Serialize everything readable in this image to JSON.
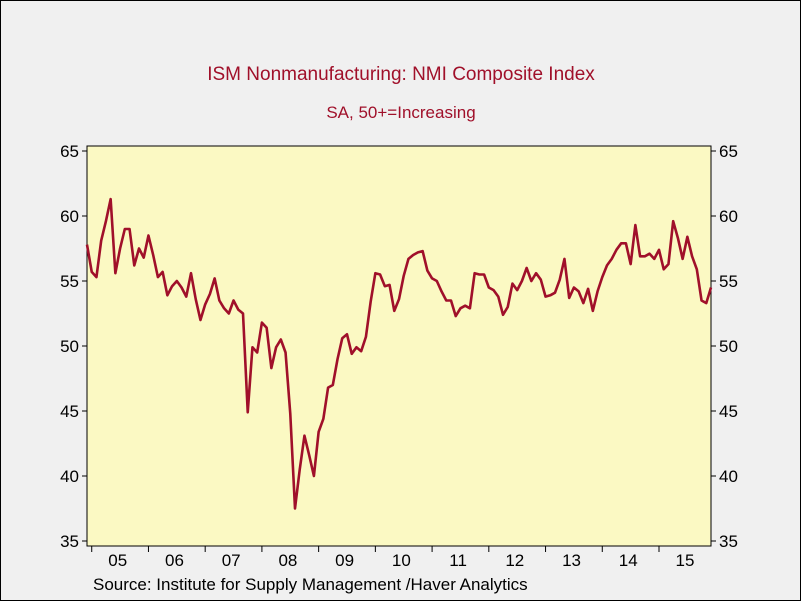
{
  "chart_data": {
    "type": "line",
    "title": "ISM Nonmanufacturing: NMI Composite Index",
    "subtitle": "SA, 50+=Increasing",
    "source": "Source:  Institute for Supply Management /Haver Analytics",
    "x_tick_labels": [
      "05",
      "06",
      "07",
      "08",
      "09",
      "10",
      "11",
      "12",
      "13",
      "14",
      "15"
    ],
    "y_ticks": [
      35,
      40,
      45,
      50,
      55,
      60,
      65
    ],
    "ylim": [
      35,
      65
    ],
    "grid": false,
    "plot_background": "#fbf9c3",
    "page_background": "#f0f0f0",
    "line_color": "#a0102a",
    "series": [
      {
        "start": "2004-12",
        "values": [
          57.8,
          55.7,
          55.3,
          58.1,
          59.6,
          61.3,
          55.6,
          57.5,
          59.0,
          59.0,
          56.2,
          57.5,
          56.8,
          58.5,
          57.0,
          55.3,
          55.7,
          53.9,
          54.6,
          55.0,
          54.5,
          53.8,
          55.6,
          53.6,
          52.0,
          53.2,
          54.0,
          55.2,
          53.5,
          52.9,
          52.5,
          53.5,
          52.8,
          52.5,
          44.9,
          49.9,
          49.5,
          51.8,
          51.4,
          48.3,
          49.9,
          50.5,
          49.5,
          44.8,
          37.5,
          40.5,
          43.1,
          41.6,
          40.0,
          43.4,
          44.4,
          46.8,
          47.0,
          49.0,
          50.6,
          50.9,
          49.4,
          49.9,
          49.6,
          50.7,
          53.4,
          55.6,
          55.5,
          54.6,
          54.7,
          52.7,
          53.6,
          55.4,
          56.7,
          57.0,
          57.2,
          57.3,
          55.8,
          55.2,
          55.0,
          54.2,
          53.5,
          53.5,
          52.3,
          52.9,
          53.1,
          52.9,
          55.6,
          55.5,
          55.5,
          54.5,
          54.3,
          53.8,
          52.4,
          53.0,
          54.8,
          54.3,
          55.0,
          56.0,
          55.0,
          55.6,
          55.1,
          53.8,
          53.9,
          54.1,
          55.1,
          56.7,
          53.7,
          54.5,
          54.2,
          53.3,
          54.4,
          52.7,
          54.2,
          55.3,
          56.2,
          56.7,
          57.4,
          57.9,
          57.9,
          56.3,
          59.3,
          56.9,
          56.9,
          57.1,
          56.7,
          57.4,
          55.9,
          56.3,
          59.6,
          58.3,
          56.7,
          58.4,
          56.9,
          55.9,
          53.5,
          53.3,
          54.5
        ]
      }
    ]
  }
}
